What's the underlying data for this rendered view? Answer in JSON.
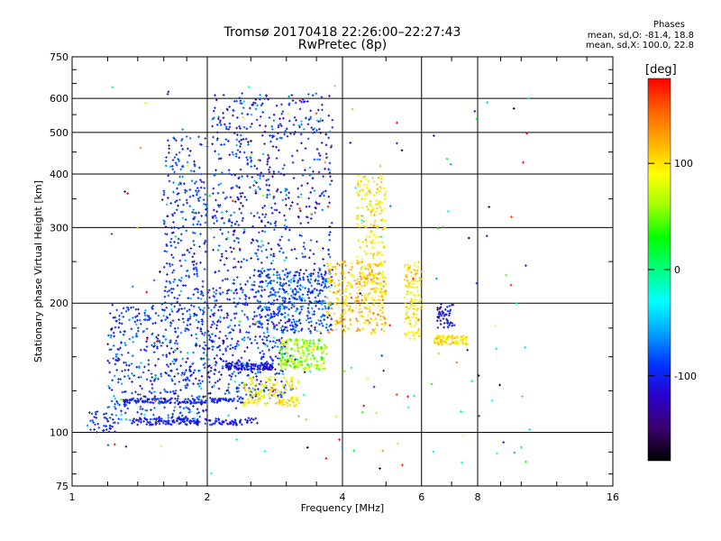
{
  "header": {
    "title_line1": "Tromsø 20170418 22:26:00–22:27:43",
    "title_line2": "RwPretec (8p)",
    "stats_heading": "Phases",
    "stats_o": "mean, sd,O: -81.4, 18.8",
    "stats_x": "mean, sd,X: 100.0, 22.8"
  },
  "colorbar": {
    "unit_label": "[deg]",
    "ticks": [
      "100",
      "0",
      "-100"
    ],
    "tick_values": [
      100,
      0,
      -100
    ],
    "range": [
      -180,
      180
    ],
    "colors": [
      "#000000",
      "#3b006b",
      "#2a00c8",
      "#0032ff",
      "#00a0ff",
      "#00ffff",
      "#00ff80",
      "#00ff00",
      "#a0ff00",
      "#ffff00",
      "#ffb000",
      "#ff6000",
      "#ff0000"
    ]
  },
  "chart_data": {
    "type": "scatter",
    "xlabel": "Frequency [MHz]",
    "ylabel": "Stationary phase Virtual Height [km]",
    "xscale": "log",
    "yscale": "log",
    "xlim": [
      1,
      16
    ],
    "ylim": [
      75,
      750
    ],
    "xticks": [
      1,
      2,
      4,
      6,
      8,
      16
    ],
    "xtick_labels": [
      "1",
      "2",
      "4",
      "6",
      "8",
      "16"
    ],
    "yticks": [
      75,
      100,
      200,
      300,
      400,
      500,
      600,
      750
    ],
    "ytick_labels": [
      "75",
      "100",
      "200",
      "300",
      "400",
      "500",
      "600",
      "750"
    ],
    "grid": true,
    "color_by": "phase [deg]",
    "clusters": [
      {
        "x": [
          1.08,
          1.25
        ],
        "y": [
          100,
          112
        ],
        "phase_mean": -100,
        "phase_sd": 15,
        "count": 40
      },
      {
        "x": [
          1.2,
          2.0
        ],
        "y": [
          105,
          200
        ],
        "phase_mean": -90,
        "phase_sd": 20,
        "count": 500
      },
      {
        "x": [
          1.6,
          2.0
        ],
        "y": [
          200,
          490
        ],
        "phase_mean": -90,
        "phase_sd": 15,
        "count": 250
      },
      {
        "x": [
          2.0,
          3.0
        ],
        "y": [
          120,
          220
        ],
        "phase_mean": -95,
        "phase_sd": 20,
        "count": 400
      },
      {
        "x": [
          2.05,
          3.8
        ],
        "y": [
          220,
          620
        ],
        "phase_mean": -100,
        "phase_sd": 25,
        "count": 600
      },
      {
        "x": [
          2.6,
          3.8
        ],
        "y": [
          170,
          240
        ],
        "phase_mean": -85,
        "phase_sd": 20,
        "count": 350
      },
      {
        "x": [
          2.2,
          2.8
        ],
        "y": [
          140,
          145
        ],
        "phase_mean": -110,
        "phase_sd": 10,
        "count": 120
      },
      {
        "x": [
          1.3,
          2.4
        ],
        "y": [
          117,
          120
        ],
        "phase_mean": -100,
        "phase_sd": 10,
        "count": 140
      },
      {
        "x": [
          1.35,
          2.6
        ],
        "y": [
          104,
          108
        ],
        "phase_mean": -105,
        "phase_sd": 10,
        "count": 140
      },
      {
        "x": [
          2.4,
          3.2
        ],
        "y": [
          115,
          135
        ],
        "phase_mean": 95,
        "phase_sd": 15,
        "count": 150
      },
      {
        "x": [
          2.9,
          3.7
        ],
        "y": [
          140,
          165
        ],
        "phase_mean": 60,
        "phase_sd": 20,
        "count": 200
      },
      {
        "x": [
          3.7,
          5.0
        ],
        "y": [
          170,
          250
        ],
        "phase_mean": 110,
        "phase_sd": 20,
        "count": 300
      },
      {
        "x": [
          4.3,
          5.0
        ],
        "y": [
          200,
          400
        ],
        "phase_mean": 100,
        "phase_sd": 15,
        "count": 200
      },
      {
        "x": [
          5.5,
          6.0
        ],
        "y": [
          165,
          250
        ],
        "phase_mean": 100,
        "phase_sd": 15,
        "count": 120
      },
      {
        "x": [
          6.4,
          7.6
        ],
        "y": [
          160,
          168
        ],
        "phase_mean": 100,
        "phase_sd": 15,
        "count": 90
      },
      {
        "x": [
          6.5,
          7.1
        ],
        "y": [
          175,
          200
        ],
        "phase_mean": -110,
        "phase_sd": 15,
        "count": 50
      },
      {
        "x": [
          1.2,
          10.5
        ],
        "y": [
          80,
          650
        ],
        "phase_mean": 0,
        "phase_sd": 120,
        "count": 180
      }
    ]
  }
}
